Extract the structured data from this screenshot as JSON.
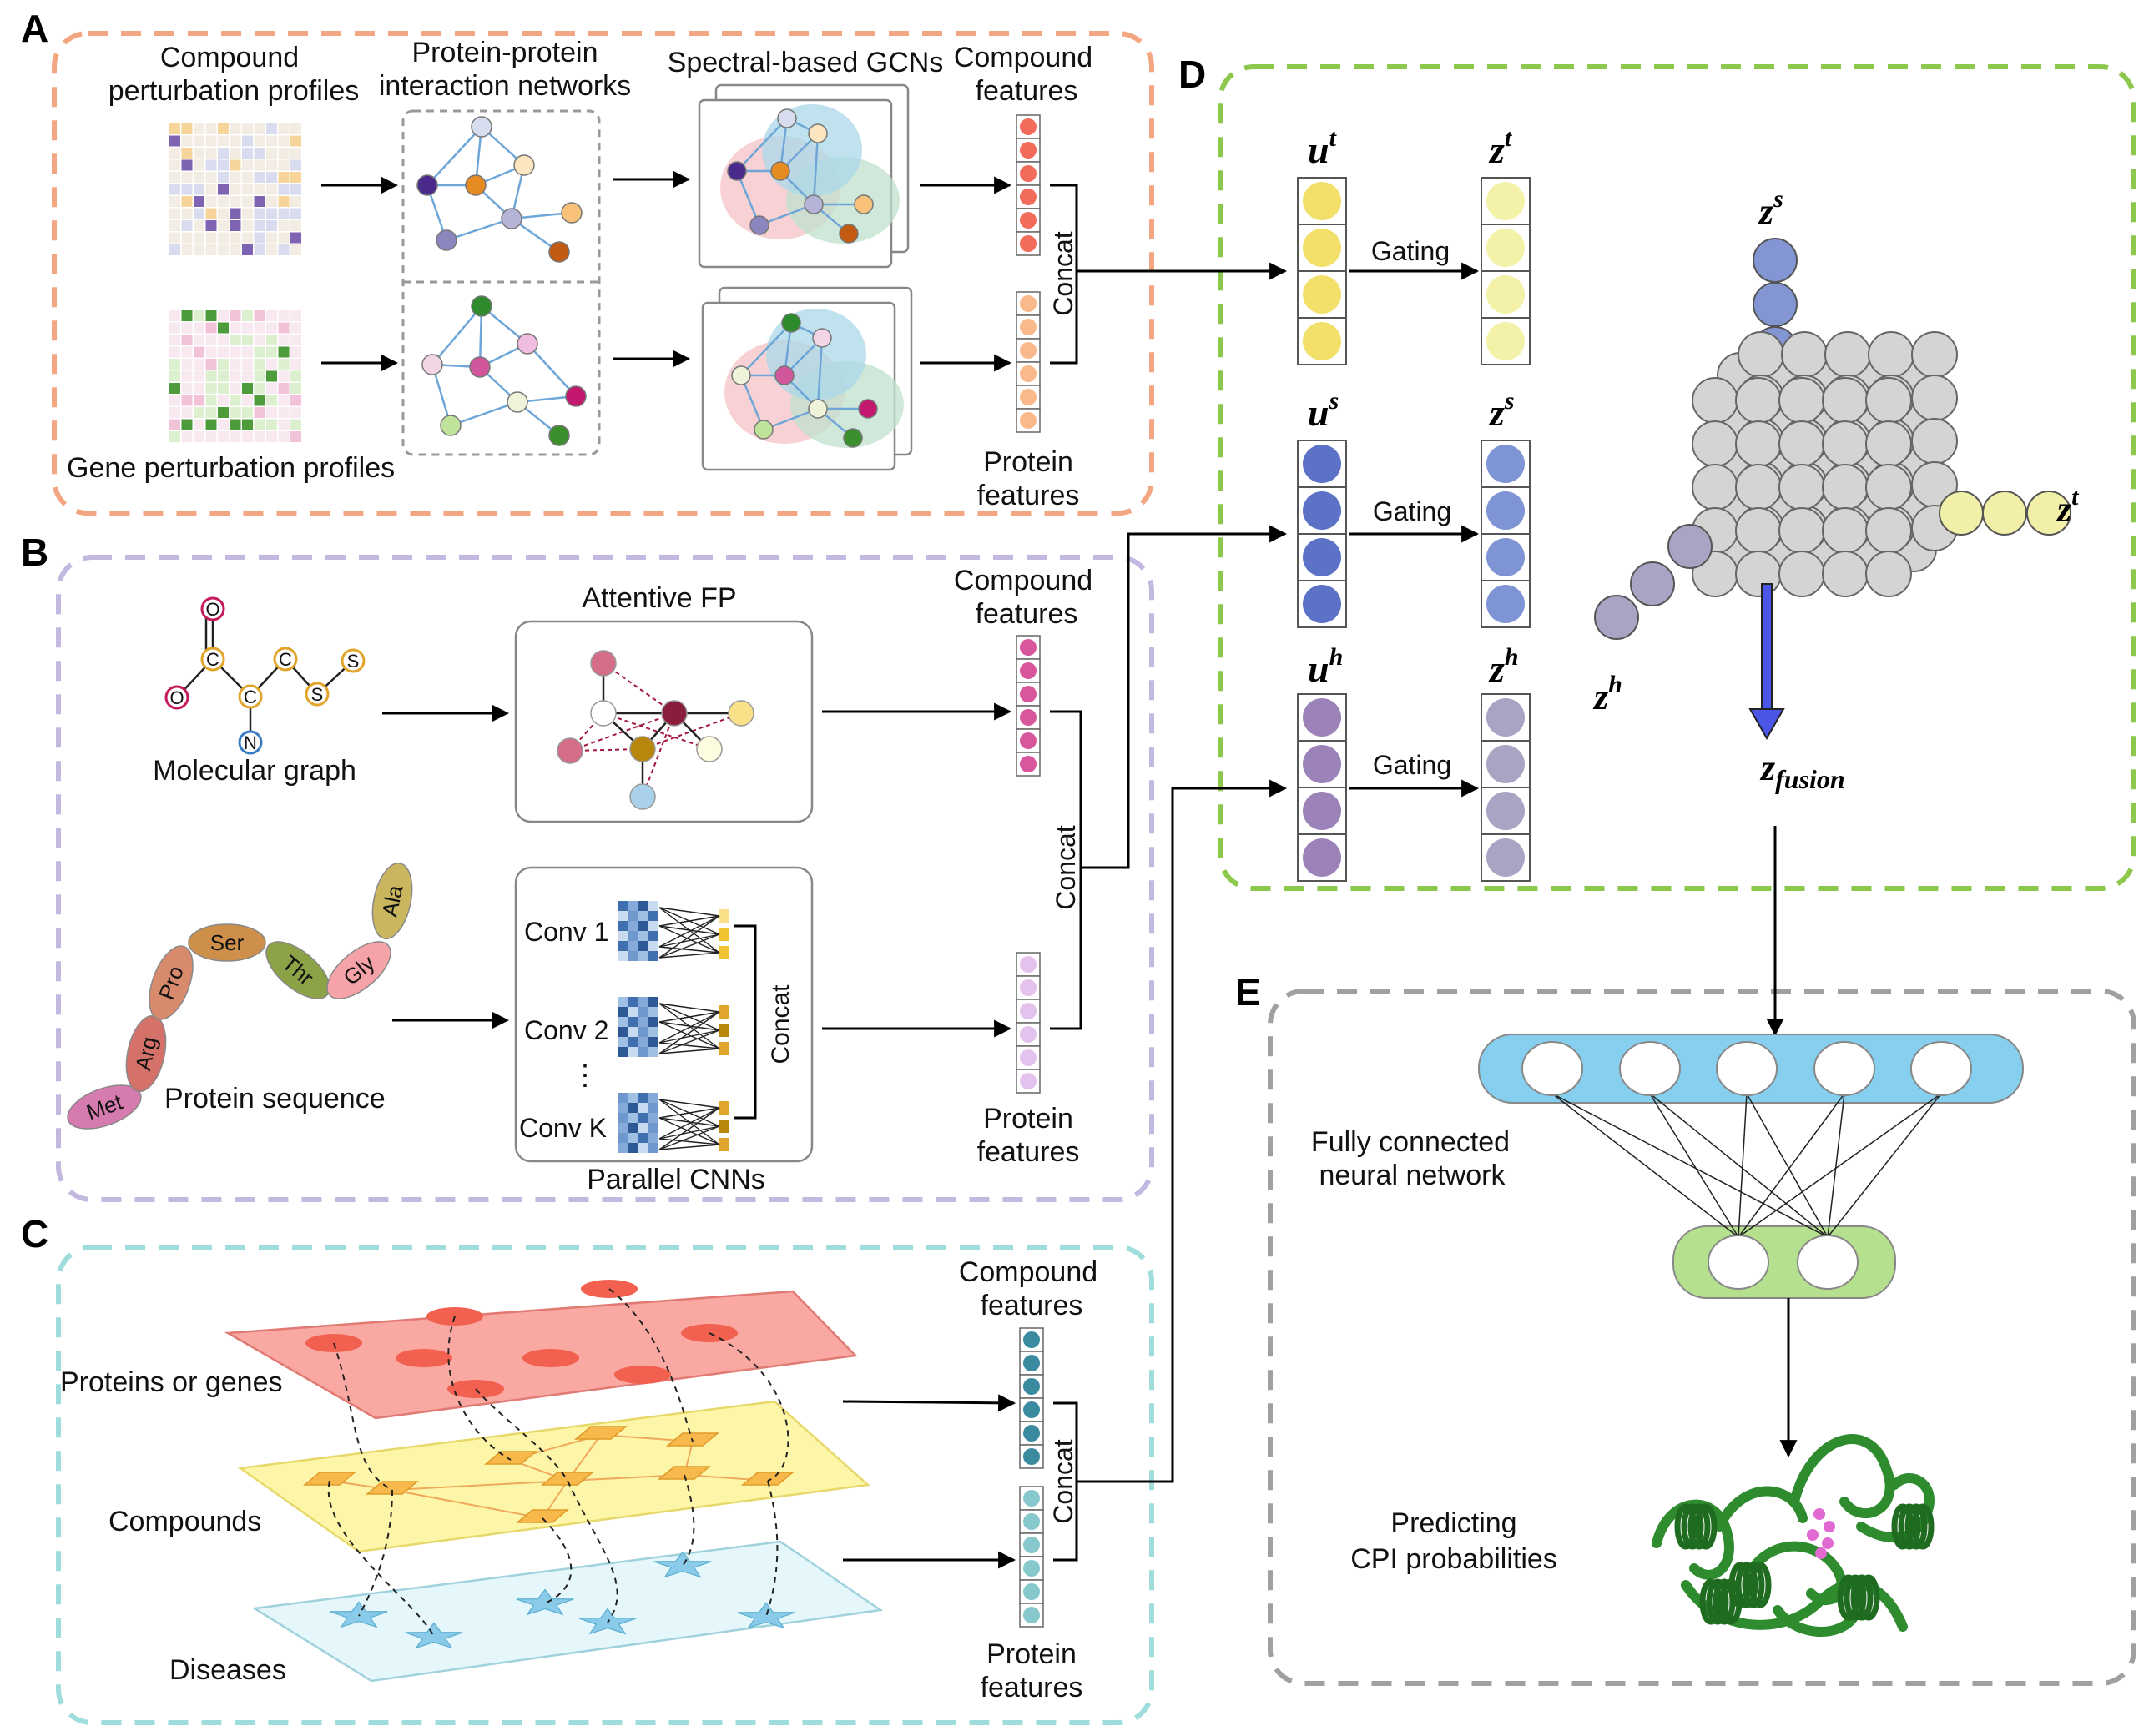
{
  "panels": {
    "A": {
      "letter": "A",
      "compound_profiles": [
        "Compound",
        "perturbation profiles"
      ],
      "ppi": [
        "Protein-protein",
        "interaction networks"
      ],
      "gcn": "Spectral-based GCNs",
      "compound_features": [
        "Compound",
        "features"
      ],
      "protein_features": [
        "Protein",
        "features"
      ],
      "gene_profiles": "Gene  perturbation profiles",
      "concat": "Concat"
    },
    "B": {
      "letter": "B",
      "attentive": "Attentive FP",
      "molecular_graph": "Molecular graph",
      "atoms": [
        "O",
        "C",
        "C",
        "S",
        "S",
        "O",
        "C",
        "N"
      ],
      "compound_features": [
        "Compound",
        "features"
      ],
      "concat": "Concat",
      "amino_acids": [
        "Met",
        "Arg",
        "Pro",
        "Ser",
        "Thr",
        "Gly",
        "Ala"
      ],
      "protein_sequence": "Protein sequence",
      "convs": [
        "Conv 1",
        "Conv 2",
        "⋮",
        "Conv K"
      ],
      "inner_concat": "Concat",
      "parallel": "Parallel CNNs",
      "protein_features": [
        "Protein",
        "features"
      ]
    },
    "C": {
      "letter": "C",
      "compound_features": [
        "Compound",
        "features"
      ],
      "proteins_genes": "Proteins or genes",
      "compounds": "Compounds",
      "diseases": "Diseases",
      "concat": "Concat",
      "protein_features": [
        "Protein",
        "features"
      ]
    },
    "D": {
      "letter": "D",
      "rows": [
        {
          "u": "u",
          "u_sup": "t",
          "z": "z",
          "z_sup": "t",
          "gating": "Gating"
        },
        {
          "u": "u",
          "u_sup": "s",
          "z": "z",
          "z_sup": "s",
          "gating": "Gating"
        },
        {
          "u": "u",
          "u_sup": "h",
          "z": "z",
          "z_sup": "h",
          "gating": "Gating"
        }
      ],
      "cube_zs": "z",
      "cube_zs_sup": "s",
      "cube_zt": "z",
      "cube_zt_sup": "t",
      "cube_zh": "z",
      "cube_zh_sup": "h",
      "fusion": "z",
      "fusion_sub": "fusion"
    },
    "E": {
      "letter": "E",
      "fcnn": [
        "Fully connected",
        "neural network"
      ],
      "predict": [
        "Predicting",
        "CPI probabilities"
      ]
    }
  },
  "colors": {
    "panelA": "#f4a582",
    "panelB": "#c2b8e0",
    "panelC": "#9fdcdc",
    "panelD": "#8cc84b",
    "panelE": "#a0a0a0",
    "featA_compound": "#f26b5b",
    "featA_protein": "#f9b98a",
    "featB_compound": "#d8579c",
    "featB_protein": "#e4c2ee",
    "featC_compound": "#3a8aa0",
    "featC_protein": "#86c8cc",
    "ut": "#f2e06a",
    "zt": "#f4f1a8",
    "us": "#5b72c6",
    "zs": "#7f94d4",
    "uh": "#9b82b8",
    "zh": "#a9a3c4",
    "fc_top": "#86cfee",
    "fc_bottom": "#b5e08e",
    "fusion_arrow": "#4b55e6",
    "protein_green": "#2e8b2e"
  }
}
